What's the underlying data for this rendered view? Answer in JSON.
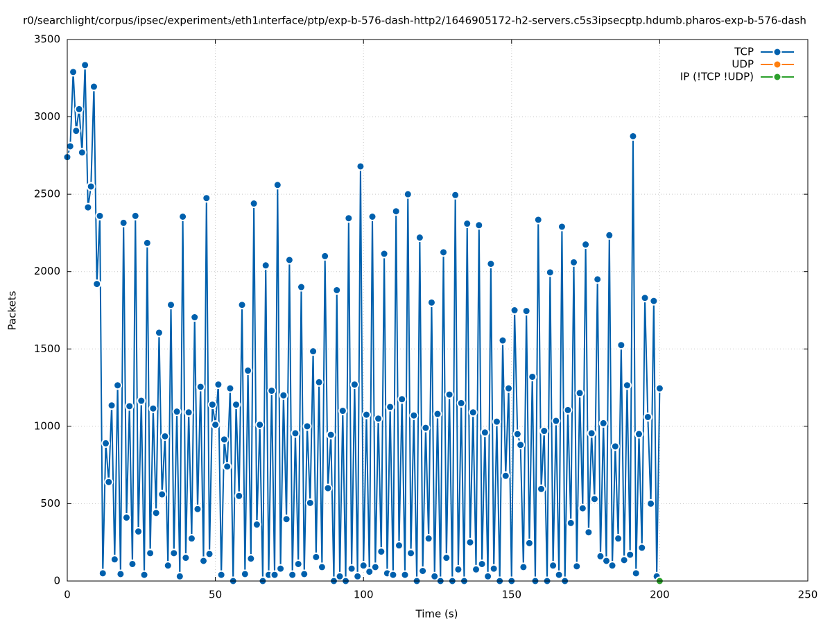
{
  "chart_data": {
    "type": "line",
    "title": "r0/searchlight/corpus/ipsec/experiment₃/eth1ᵢnterface/ptp/exp-b-576-dash-http2/1646905172-h2-servers.c5s3ipsecptp.hdumb.pharos-exp-b-576-dash",
    "xlabel": "Time (s)",
    "ylabel": "Packets",
    "xlim": [
      0,
      250
    ],
    "xticks": [
      0,
      50,
      100,
      150,
      200,
      250
    ],
    "ylim": [
      0,
      3500
    ],
    "yticks": [
      0,
      500,
      1000,
      1500,
      2000,
      2500,
      3000,
      3500
    ],
    "grid": true,
    "legend": "top-right",
    "series": [
      {
        "name": "TCP",
        "color": "#0060ad",
        "x": [
          0,
          1,
          2,
          3,
          4,
          5,
          6,
          7,
          8,
          9,
          10,
          11,
          12,
          13,
          14,
          15,
          16,
          17,
          18,
          19,
          20,
          21,
          22,
          23,
          24,
          25,
          26,
          27,
          28,
          29,
          30,
          31,
          32,
          33,
          34,
          35,
          36,
          37,
          38,
          39,
          40,
          41,
          42,
          43,
          44,
          45,
          46,
          47,
          48,
          49,
          50,
          51,
          52,
          53,
          54,
          55,
          56,
          57,
          58,
          59,
          60,
          61,
          62,
          63,
          64,
          65,
          66,
          67,
          68,
          69,
          70,
          71,
          72,
          73,
          74,
          75,
          76,
          77,
          78,
          79,
          80,
          81,
          82,
          83,
          84,
          85,
          86,
          87,
          88,
          89,
          90,
          91,
          92,
          93,
          94,
          95,
          96,
          97,
          98,
          99,
          100,
          101,
          102,
          103,
          104,
          105,
          106,
          107,
          108,
          109,
          110,
          111,
          112,
          113,
          114,
          115,
          116,
          117,
          118,
          119,
          120,
          121,
          122,
          123,
          124,
          125,
          126,
          127,
          128,
          129,
          130,
          131,
          132,
          133,
          134,
          135,
          136,
          137,
          138,
          139,
          140,
          141,
          142,
          143,
          144,
          145,
          146,
          147,
          148,
          149,
          150,
          151,
          152,
          153,
          154,
          155,
          156,
          157,
          158,
          159,
          160,
          161,
          162,
          163,
          164,
          165,
          166,
          167,
          168,
          169,
          170,
          171,
          172,
          173,
          174,
          175,
          176,
          177,
          178,
          179,
          180,
          181,
          182,
          183,
          184,
          185,
          186,
          187,
          188,
          189,
          190,
          191,
          192,
          193,
          194,
          195,
          196,
          197,
          198,
          199,
          200
        ],
        "values": [
          2740,
          2810,
          3290,
          2910,
          3050,
          2770,
          3335,
          2415,
          2550,
          3195,
          1920,
          2360,
          50,
          890,
          640,
          1135,
          140,
          1265,
          45,
          2315,
          410,
          1130,
          110,
          2360,
          320,
          1165,
          40,
          2185,
          180,
          1115,
          440,
          1605,
          560,
          935,
          100,
          1785,
          180,
          1095,
          30,
          2355,
          150,
          1090,
          275,
          1705,
          465,
          1255,
          130,
          2475,
          175,
          1140,
          1010,
          1270,
          40,
          915,
          740,
          1245,
          0,
          1140,
          550,
          1785,
          45,
          1360,
          145,
          2440,
          365,
          1010,
          0,
          2040,
          40,
          1230,
          40,
          2560,
          80,
          1200,
          400,
          2075,
          40,
          955,
          110,
          1900,
          45,
          1000,
          505,
          1485,
          155,
          1285,
          90,
          2100,
          600,
          945,
          0,
          1880,
          30,
          1100,
          0,
          2345,
          80,
          1270,
          30,
          2680,
          100,
          1075,
          60,
          2355,
          90,
          1050,
          190,
          2115,
          50,
          1125,
          40,
          2390,
          230,
          1175,
          40,
          2500,
          180,
          1070,
          0,
          2220,
          65,
          990,
          275,
          1800,
          30,
          1080,
          0,
          2125,
          150,
          1205,
          0,
          2495,
          75,
          1150,
          0,
          2310,
          250,
          1090,
          75,
          2300,
          110,
          960,
          30,
          2050,
          80,
          1030,
          0,
          1555,
          680,
          1245,
          0,
          1750,
          950,
          880,
          90,
          1745,
          245,
          1320,
          0,
          2335,
          595,
          970,
          0,
          1995,
          100,
          1035,
          40,
          2290,
          0,
          1105,
          375,
          2060,
          95,
          1215,
          470,
          2175,
          315,
          955,
          530,
          1950,
          160,
          1020,
          130,
          2235,
          100,
          870,
          275,
          1525,
          135,
          1265,
          170,
          2875,
          50,
          950,
          215,
          1830,
          1060,
          500,
          1810,
          30,
          1245
        ]
      },
      {
        "name": "UDP",
        "color": "#ff7f0e",
        "x": [
          200
        ],
        "values": [
          0
        ]
      },
      {
        "name": "IP (!TCP  !UDP)",
        "color": "#2ca02c",
        "x": [
          200
        ],
        "values": [
          0
        ]
      }
    ]
  }
}
